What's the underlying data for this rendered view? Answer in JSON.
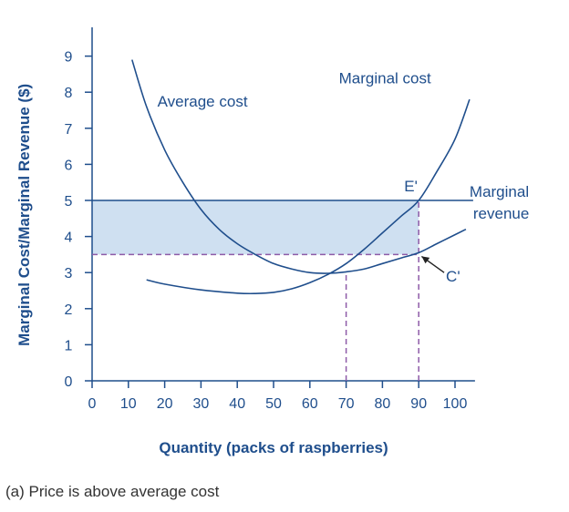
{
  "chart_data": {
    "type": "line",
    "xlabel": "Quantity (packs of raspberries)",
    "ylabel": "Marginal Cost/Marginal Revenue ($)",
    "xlim": [
      0,
      105
    ],
    "ylim": [
      0,
      9.5
    ],
    "x_ticks": [
      "0",
      "10",
      "20",
      "30",
      "40",
      "50",
      "60",
      "70",
      "80",
      "90",
      "100"
    ],
    "y_ticks": [
      "0",
      "1",
      "2",
      "3",
      "4",
      "5",
      "6",
      "7",
      "8",
      "9"
    ],
    "grid": false,
    "series": [
      {
        "name": "Average cost",
        "color": "#1f4e8c",
        "points": [
          [
            11,
            8.9
          ],
          [
            15,
            7.6
          ],
          [
            20,
            6.4
          ],
          [
            25,
            5.5
          ],
          [
            30,
            4.75
          ],
          [
            35,
            4.2
          ],
          [
            40,
            3.8
          ],
          [
            45,
            3.5
          ],
          [
            50,
            3.25
          ],
          [
            55,
            3.1
          ],
          [
            60,
            3.0
          ],
          [
            65,
            2.98
          ],
          [
            70,
            3.02
          ],
          [
            75,
            3.1
          ],
          [
            80,
            3.25
          ],
          [
            85,
            3.4
          ],
          [
            90,
            3.55
          ],
          [
            95,
            3.8
          ],
          [
            100,
            4.05
          ],
          [
            103,
            4.2
          ]
        ]
      },
      {
        "name": "Marginal cost",
        "color": "#1f4e8c",
        "points": [
          [
            15,
            2.8
          ],
          [
            20,
            2.68
          ],
          [
            30,
            2.52
          ],
          [
            40,
            2.43
          ],
          [
            45,
            2.42
          ],
          [
            50,
            2.45
          ],
          [
            55,
            2.55
          ],
          [
            60,
            2.72
          ],
          [
            65,
            2.95
          ],
          [
            70,
            3.25
          ],
          [
            75,
            3.65
          ],
          [
            80,
            4.1
          ],
          [
            85,
            4.55
          ],
          [
            90,
            5.0
          ],
          [
            95,
            5.8
          ],
          [
            100,
            6.7
          ],
          [
            104,
            7.8
          ]
        ]
      },
      {
        "name": "Marginal revenue",
        "color": "#1f4e8c",
        "points": [
          [
            0,
            5
          ],
          [
            105,
            5
          ]
        ]
      }
    ],
    "reference_lines": [
      {
        "from": [
          0,
          3.5
        ],
        "to": [
          90,
          3.5
        ],
        "color": "#8e5ba8"
      },
      {
        "from": [
          70,
          0
        ],
        "to": [
          70,
          3.0
        ],
        "color": "#8e5ba8"
      },
      {
        "from": [
          90,
          0
        ],
        "to": [
          90,
          5.0
        ],
        "color": "#8e5ba8"
      }
    ],
    "shaded_region": {
      "x": [
        0,
        90
      ],
      "y": [
        3.5,
        5
      ],
      "color": "#cfe0f1"
    },
    "annotations": [
      {
        "text": "Average cost",
        "x": 18,
        "y": 7.6
      },
      {
        "text": "Marginal cost",
        "x": 68,
        "y": 8.25
      },
      {
        "text": "Marginal",
        "x": 104,
        "y": 5.1
      },
      {
        "text": "revenue",
        "x": 105,
        "y": 4.5
      },
      {
        "text": "E'",
        "x": 86,
        "y": 5.25
      },
      {
        "text": "C'",
        "x": 97.5,
        "y": 2.75
      }
    ],
    "caption": "(a) Price is above average cost"
  }
}
